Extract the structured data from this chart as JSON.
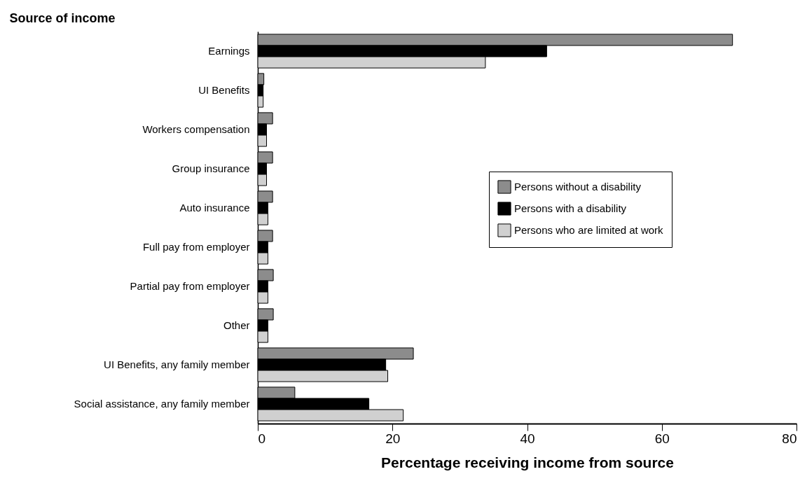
{
  "chart_data": {
    "type": "bar",
    "orientation": "horizontal",
    "ylabel": "Source of income",
    "xlabel": "Percentage receiving income from source",
    "categories": [
      "Earnings",
      "UI Benefits",
      "Workers compensation",
      "Group insurance",
      "Auto insurance",
      "Full pay from employer",
      "Partial pay from employer",
      "Other",
      "UI Benefits, any family member",
      "Social assistance, any family member"
    ],
    "series": [
      {
        "name": "Persons without a disability",
        "color": "#8c8c8c",
        "values": [
          70.5,
          0.9,
          2.2,
          2.2,
          2.2,
          2.2,
          2.3,
          2.3,
          23.1,
          5.5
        ]
      },
      {
        "name": "Persons with a disability",
        "color": "#000000",
        "values": [
          42.9,
          0.8,
          1.3,
          1.3,
          1.5,
          1.5,
          1.5,
          1.5,
          19,
          16.5
        ]
      },
      {
        "name": "Persons who are limited at work",
        "color": "#d0d0d0",
        "values": [
          33.8,
          0.8,
          1.3,
          1.3,
          1.5,
          1.5,
          1.5,
          1.5,
          19.3,
          21.6
        ]
      }
    ],
    "xlim": [
      0,
      80
    ],
    "xticks": [
      0,
      20,
      40,
      60,
      80
    ],
    "legend": "right"
  }
}
